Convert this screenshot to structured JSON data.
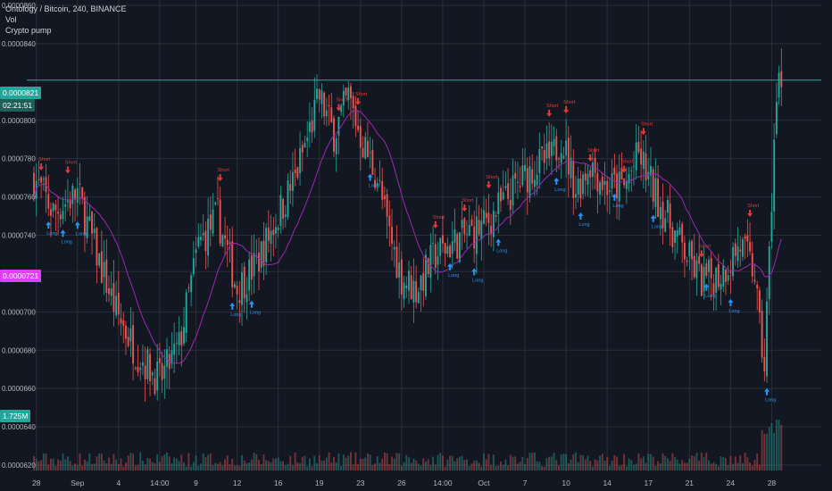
{
  "header": {
    "title": "Ontology / Bitcoin, 240, BINANCE",
    "indicator_1": "Vol",
    "indicator_2": "Crypto pump"
  },
  "colors": {
    "background": "#131722",
    "grid": "#2a2e39",
    "up": "#26a69a",
    "down": "#ef5350",
    "ma_line": "#9c27b0",
    "signal_long": "#2196f3",
    "signal_short": "#e53935",
    "current_price_line": "#26a69a",
    "highlight_tag": "#e040fb"
  },
  "price_tags": {
    "current_price": "0.0000821",
    "countdown": "02:21:51",
    "highlight_price": "0.0000721",
    "volume_value": "1.725M"
  },
  "chart_data": {
    "type": "candlestick",
    "title": "Ontology / Bitcoin, 240, BINANCE",
    "y_axis": {
      "min": 6.2e-05,
      "max": 8.6e-05,
      "ticks": [
        "0.0000860",
        "0.0000840",
        "0.0000821",
        "0.0000800",
        "0.0000780",
        "0.0000760",
        "0.0000740",
        "0.0000721",
        "0.0000700",
        "0.0000680",
        "0.0000660",
        "0.0000640",
        "0.0000620"
      ]
    },
    "x_axis": {
      "ticks": [
        {
          "label": "28",
          "index": 1
        },
        {
          "label": "Sep",
          "index": 18
        },
        {
          "label": "4",
          "index": 35
        },
        {
          "label": "14:00",
          "index": 52
        },
        {
          "label": "9",
          "index": 67
        },
        {
          "label": "12",
          "index": 84
        },
        {
          "label": "16",
          "index": 101
        },
        {
          "label": "19",
          "index": 118
        },
        {
          "label": "23",
          "index": 135
        },
        {
          "label": "26",
          "index": 152
        },
        {
          "label": "14:00",
          "index": 169
        },
        {
          "label": "Oct",
          "index": 186
        },
        {
          "label": "7",
          "index": 203
        },
        {
          "label": "10",
          "index": 220
        },
        {
          "label": "14",
          "index": 237
        },
        {
          "label": "17",
          "index": 254
        },
        {
          "label": "21",
          "index": 271
        },
        {
          "label": "24",
          "index": 288
        },
        {
          "label": "28",
          "index": 305
        }
      ]
    },
    "anchors": [
      [
        0,
        7.7e-05
      ],
      [
        8,
        7.52e-05
      ],
      [
        18,
        7.62e-05
      ],
      [
        26,
        7.3e-05
      ],
      [
        34,
        7e-05
      ],
      [
        42,
        6.8e-05
      ],
      [
        52,
        6.64e-05
      ],
      [
        60,
        6.82e-05
      ],
      [
        68,
        7.35e-05
      ],
      [
        76,
        7.5e-05
      ],
      [
        84,
        7.12e-05
      ],
      [
        92,
        7.25e-05
      ],
      [
        100,
        7.48e-05
      ],
      [
        108,
        7.7e-05
      ],
      [
        114,
        7.95e-05
      ],
      [
        118,
        8.12e-05
      ],
      [
        124,
        7.93e-05
      ],
      [
        130,
        8.12e-05
      ],
      [
        136,
        7.88e-05
      ],
      [
        142,
        7.7e-05
      ],
      [
        146,
        7.45e-05
      ],
      [
        152,
        7.18e-05
      ],
      [
        158,
        7.12e-05
      ],
      [
        166,
        7.3e-05
      ],
      [
        176,
        7.38e-05
      ],
      [
        186,
        7.45e-05
      ],
      [
        196,
        7.6e-05
      ],
      [
        206,
        7.75e-05
      ],
      [
        214,
        7.8e-05
      ],
      [
        218,
        7.92e-05
      ],
      [
        224,
        7.64e-05
      ],
      [
        230,
        7.78e-05
      ],
      [
        236,
        7.66e-05
      ],
      [
        244,
        7.65e-05
      ],
      [
        250,
        7.82e-05
      ],
      [
        256,
        7.64e-05
      ],
      [
        266,
        7.38e-05
      ],
      [
        276,
        7.16e-05
      ],
      [
        284,
        7.2e-05
      ],
      [
        292,
        7.35e-05
      ],
      [
        298,
        7.2e-05
      ],
      [
        300,
        6.9e-05
      ],
      [
        302,
        6.72e-05
      ],
      [
        304,
        7.28e-05
      ],
      [
        306,
        7.9e-05
      ],
      [
        308,
        8.21e-05
      ]
    ],
    "ma_period": 20
  },
  "signals": [
    {
      "side": "short",
      "index": 3,
      "label": "Short"
    },
    {
      "side": "long",
      "index": 6,
      "label": "Long"
    },
    {
      "side": "short",
      "index": 14,
      "label": "Short"
    },
    {
      "side": "long",
      "index": 12,
      "label": "Long"
    },
    {
      "side": "long",
      "index": 18,
      "label": "Long"
    },
    {
      "side": "short",
      "index": 77,
      "label": "Short"
    },
    {
      "side": "long",
      "index": 82,
      "label": "Long"
    },
    {
      "side": "long",
      "index": 90,
      "label": "Long"
    },
    {
      "side": "short",
      "index": 126,
      "label": "Short"
    },
    {
      "side": "short",
      "index": 134,
      "label": "Short"
    },
    {
      "side": "long",
      "index": 139,
      "label": "Long"
    },
    {
      "side": "short",
      "index": 166,
      "label": "Short"
    },
    {
      "side": "long",
      "index": 172,
      "label": "Long"
    },
    {
      "side": "short",
      "index": 178,
      "label": "Short"
    },
    {
      "side": "long",
      "index": 182,
      "label": "Long"
    },
    {
      "side": "short",
      "index": 188,
      "label": "Short"
    },
    {
      "side": "long",
      "index": 192,
      "label": "Long"
    },
    {
      "side": "short",
      "index": 213,
      "label": "Short"
    },
    {
      "side": "long",
      "index": 216,
      "label": "Long"
    },
    {
      "side": "short",
      "index": 220,
      "label": "Short"
    },
    {
      "side": "short",
      "index": 230,
      "label": "Short"
    },
    {
      "side": "long",
      "index": 226,
      "label": "Long"
    },
    {
      "side": "short",
      "index": 244,
      "label": "Short"
    },
    {
      "side": "long",
      "index": 240,
      "label": "Long"
    },
    {
      "side": "short",
      "index": 252,
      "label": "Short"
    },
    {
      "side": "long",
      "index": 256,
      "label": "Long"
    },
    {
      "side": "short",
      "index": 276,
      "label": "Short"
    },
    {
      "side": "long",
      "index": 278,
      "label": "Long"
    },
    {
      "side": "short",
      "index": 296,
      "label": "Short"
    },
    {
      "side": "long",
      "index": 288,
      "label": "Long"
    },
    {
      "side": "long",
      "index": 303,
      "label": "Long"
    }
  ]
}
